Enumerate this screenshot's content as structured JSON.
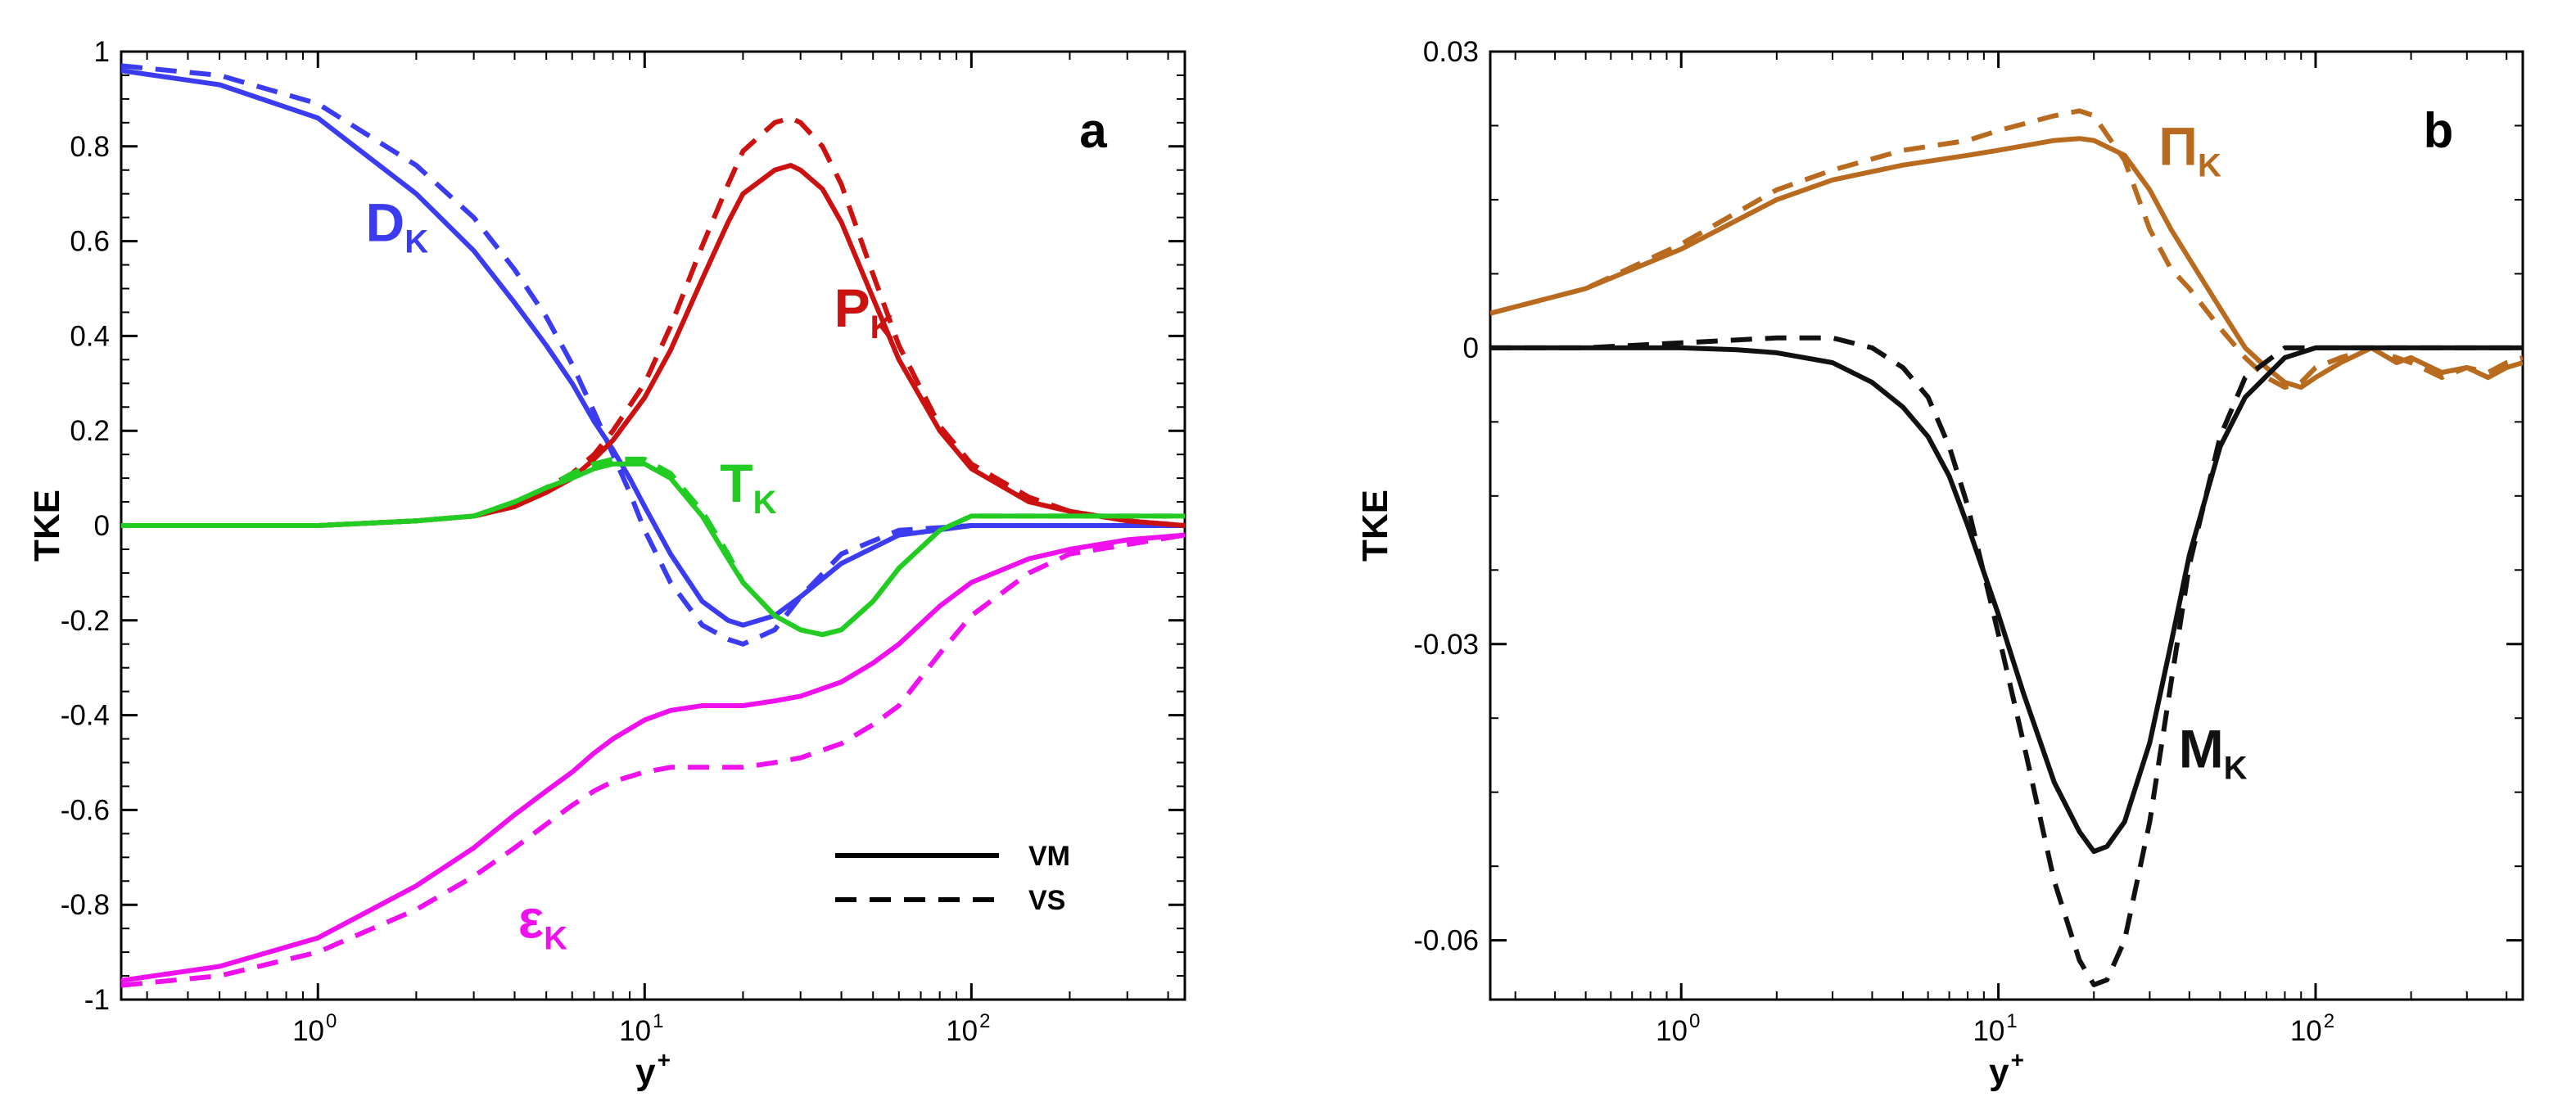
{
  "chart_data": [
    {
      "type": "line",
      "panel_label": "a",
      "xlabel": "y",
      "xlabel_superscript": "+",
      "ylabel": "TKE",
      "xscale": "log",
      "xlim": [
        0.25,
        450
      ],
      "ylim": [
        -1,
        1
      ],
      "yticks": [
        {
          "value": 1,
          "label": "1"
        },
        {
          "value": 0.8,
          "label": "0.8"
        },
        {
          "value": 0.6,
          "label": "0.6"
        },
        {
          "value": 0.4,
          "label": "0.4"
        },
        {
          "value": 0.2,
          "label": "0.2"
        },
        {
          "value": 0,
          "label": "0"
        },
        {
          "value": -0.2,
          "label": "-0.2"
        },
        {
          "value": -0.4,
          "label": "-0.4"
        },
        {
          "value": -0.6,
          "label": "-0.6"
        },
        {
          "value": -0.8,
          "label": "-0.8"
        },
        {
          "value": -1,
          "label": "-1"
        }
      ],
      "xticks": [
        {
          "value": 1,
          "base": "10",
          "exp": "0"
        },
        {
          "value": 10,
          "base": "10",
          "exp": "1"
        },
        {
          "value": 100,
          "base": "10",
          "exp": "2"
        }
      ],
      "legend": {
        "placement": "bottom-right",
        "entries": [
          {
            "label": "VM",
            "style": "solid"
          },
          {
            "label": "VS",
            "style": "dashed"
          }
        ]
      },
      "series": [
        {
          "name": "D",
          "subscript": "K",
          "color": "#3b3bf0",
          "style": "solid",
          "x": [
            0.25,
            0.5,
            1,
            2,
            3,
            4,
            5,
            6,
            7,
            8,
            9,
            10,
            12,
            15,
            18,
            20,
            25,
            30,
            40,
            60,
            100,
            200,
            450
          ],
          "y": [
            0.96,
            0.93,
            0.86,
            0.7,
            0.58,
            0.47,
            0.38,
            0.3,
            0.22,
            0.16,
            0.1,
            0.04,
            -0.06,
            -0.16,
            -0.2,
            -0.21,
            -0.19,
            -0.15,
            -0.08,
            -0.02,
            0.0,
            0.0,
            0.0
          ]
        },
        {
          "name": "D",
          "subscript": "K",
          "color": "#3b3bf0",
          "style": "dashed",
          "x": [
            0.25,
            0.5,
            1,
            2,
            3,
            4,
            5,
            6,
            7,
            8,
            9,
            10,
            12,
            15,
            18,
            20,
            25,
            30,
            40,
            60,
            100,
            200,
            450
          ],
          "y": [
            0.97,
            0.95,
            0.89,
            0.76,
            0.65,
            0.54,
            0.44,
            0.34,
            0.24,
            0.15,
            0.07,
            -0.01,
            -0.12,
            -0.21,
            -0.24,
            -0.25,
            -0.22,
            -0.15,
            -0.06,
            -0.01,
            0.0,
            0.0,
            0.0
          ]
        },
        {
          "name": "P",
          "subscript": "K",
          "color": "#cc1111",
          "style": "solid",
          "x": [
            0.25,
            1,
            2,
            3,
            4,
            5,
            6,
            7,
            8,
            10,
            12,
            15,
            18,
            20,
            25,
            28,
            30,
            35,
            40,
            50,
            60,
            80,
            100,
            150,
            200,
            300,
            450
          ],
          "y": [
            0.0,
            0.0,
            0.01,
            0.02,
            0.04,
            0.07,
            0.1,
            0.14,
            0.18,
            0.27,
            0.37,
            0.52,
            0.64,
            0.7,
            0.75,
            0.76,
            0.75,
            0.71,
            0.64,
            0.48,
            0.35,
            0.2,
            0.12,
            0.05,
            0.03,
            0.01,
            0.0
          ]
        },
        {
          "name": "P",
          "subscript": "K",
          "color": "#cc1111",
          "style": "dashed",
          "x": [
            0.25,
            1,
            2,
            3,
            4,
            5,
            6,
            7,
            8,
            10,
            12,
            15,
            18,
            20,
            25,
            28,
            30,
            35,
            40,
            50,
            60,
            80,
            100,
            150,
            200,
            300,
            450
          ],
          "y": [
            0.0,
            0.0,
            0.01,
            0.02,
            0.04,
            0.08,
            0.11,
            0.15,
            0.2,
            0.3,
            0.42,
            0.59,
            0.72,
            0.79,
            0.85,
            0.86,
            0.85,
            0.8,
            0.72,
            0.53,
            0.38,
            0.21,
            0.13,
            0.06,
            0.03,
            0.01,
            0.0
          ]
        },
        {
          "name": "T",
          "subscript": "K",
          "color": "#22cc22",
          "style": "solid",
          "x": [
            0.25,
            1,
            2,
            3,
            4,
            5,
            6,
            7,
            8,
            9,
            10,
            12,
            15,
            18,
            20,
            25,
            30,
            35,
            40,
            50,
            60,
            80,
            100,
            150,
            200,
            300,
            450
          ],
          "y": [
            0.0,
            0.0,
            0.01,
            0.02,
            0.05,
            0.08,
            0.1,
            0.12,
            0.13,
            0.13,
            0.13,
            0.1,
            0.02,
            -0.07,
            -0.12,
            -0.19,
            -0.22,
            -0.23,
            -0.22,
            -0.16,
            -0.09,
            -0.01,
            0.02,
            0.02,
            0.02,
            0.02,
            0.02
          ]
        },
        {
          "name": "T",
          "subscript": "K",
          "color": "#22cc22",
          "style": "dashed",
          "x": [
            0.25,
            1,
            2,
            3,
            4,
            5,
            6,
            7,
            8,
            9,
            10,
            12,
            15,
            18,
            20,
            25,
            30,
            35,
            40,
            50,
            60,
            80,
            100,
            150,
            200,
            300,
            450
          ],
          "y": [
            0.0,
            0.0,
            0.01,
            0.02,
            0.05,
            0.08,
            0.11,
            0.13,
            0.14,
            0.14,
            0.14,
            0.11,
            0.03,
            -0.06,
            -0.12,
            -0.19,
            -0.22,
            -0.23,
            -0.22,
            -0.16,
            -0.09,
            -0.01,
            0.02,
            0.02,
            0.02,
            0.02,
            0.02
          ]
        },
        {
          "name": "ε",
          "subscript": "K",
          "color": "#ee11ee",
          "style": "solid",
          "x": [
            0.25,
            0.5,
            1,
            2,
            3,
            4,
            5,
            6,
            7,
            8,
            10,
            12,
            15,
            20,
            25,
            30,
            40,
            50,
            60,
            80,
            100,
            150,
            200,
            300,
            450
          ],
          "y": [
            -0.96,
            -0.93,
            -0.87,
            -0.76,
            -0.68,
            -0.61,
            -0.56,
            -0.52,
            -0.48,
            -0.45,
            -0.41,
            -0.39,
            -0.38,
            -0.38,
            -0.37,
            -0.36,
            -0.33,
            -0.29,
            -0.25,
            -0.17,
            -0.12,
            -0.07,
            -0.05,
            -0.03,
            -0.02
          ]
        },
        {
          "name": "ε",
          "subscript": "K",
          "color": "#ee11ee",
          "style": "dashed",
          "x": [
            0.25,
            0.5,
            1,
            2,
            3,
            4,
            5,
            6,
            7,
            8,
            10,
            12,
            15,
            20,
            25,
            30,
            40,
            50,
            60,
            80,
            100,
            150,
            200,
            300,
            450
          ],
          "y": [
            -0.97,
            -0.95,
            -0.9,
            -0.81,
            -0.74,
            -0.68,
            -0.63,
            -0.59,
            -0.56,
            -0.54,
            -0.52,
            -0.51,
            -0.51,
            -0.51,
            -0.5,
            -0.49,
            -0.46,
            -0.42,
            -0.38,
            -0.27,
            -0.19,
            -0.1,
            -0.06,
            -0.04,
            -0.02
          ]
        }
      ],
      "annotations": [
        {
          "series": "D",
          "text": "D",
          "sub": "K",
          "color": "#3b3bf0",
          "x": 1.4,
          "y": 0.6
        },
        {
          "series": "P",
          "text": "P",
          "sub": "K",
          "color": "#cc1111",
          "x": 38,
          "y": 0.42
        },
        {
          "series": "T",
          "text": "T",
          "sub": "K",
          "color": "#22cc22",
          "x": 17,
          "y": 0.05
        },
        {
          "series": "ε",
          "text": "ε",
          "sub": "K",
          "color": "#ee11ee",
          "x": 4.1,
          "y": -0.87
        }
      ]
    },
    {
      "type": "line",
      "panel_label": "b",
      "xlabel": "y",
      "xlabel_superscript": "+",
      "ylabel": "TKE",
      "xscale": "log",
      "xlim": [
        0.25,
        450
      ],
      "ylim": [
        -0.066,
        0.03
      ],
      "yticks": [
        {
          "value": 0.03,
          "label": "0.03"
        },
        {
          "value": 0,
          "label": "0"
        },
        {
          "value": -0.03,
          "label": "-0.03"
        },
        {
          "value": -0.06,
          "label": "-0.06"
        }
      ],
      "xticks": [
        {
          "value": 1,
          "base": "10",
          "exp": "0"
        },
        {
          "value": 10,
          "base": "10",
          "exp": "1"
        },
        {
          "value": 100,
          "base": "10",
          "exp": "2"
        }
      ],
      "series": [
        {
          "name": "Π",
          "subscript": "K",
          "color": "#b86b1f",
          "style": "solid",
          "x": [
            0.25,
            0.5,
            1,
            2,
            3,
            5,
            8,
            10,
            15,
            18,
            20,
            25,
            30,
            35,
            40,
            50,
            60,
            70,
            80,
            90,
            100,
            120,
            150,
            180,
            200,
            250,
            300,
            350,
            400,
            450
          ],
          "y": [
            0.0035,
            0.006,
            0.01,
            0.015,
            0.017,
            0.0185,
            0.0195,
            0.02,
            0.021,
            0.0212,
            0.021,
            0.0195,
            0.016,
            0.012,
            0.009,
            0.004,
            0.0,
            -0.002,
            -0.0035,
            -0.004,
            -0.003,
            -0.0015,
            0.0,
            -0.0015,
            -0.001,
            -0.0025,
            -0.002,
            -0.003,
            -0.002,
            -0.0015
          ]
        },
        {
          "name": "Π",
          "subscript": "K",
          "color": "#b86b1f",
          "style": "dashed",
          "x": [
            0.25,
            0.5,
            1,
            2,
            3,
            5,
            8,
            10,
            15,
            18,
            20,
            25,
            30,
            35,
            40,
            50,
            60,
            70,
            80,
            90,
            100,
            120,
            150,
            180,
            200,
            250,
            300,
            350,
            400,
            450
          ],
          "y": [
            0.0035,
            0.006,
            0.0105,
            0.016,
            0.018,
            0.02,
            0.021,
            0.022,
            0.0235,
            0.024,
            0.0235,
            0.019,
            0.012,
            0.008,
            0.006,
            0.002,
            -0.001,
            -0.003,
            -0.004,
            -0.0035,
            -0.002,
            -0.001,
            0.0,
            -0.001,
            -0.0015,
            -0.003,
            -0.002,
            -0.0025,
            -0.0015,
            -0.001
          ]
        },
        {
          "name": "M",
          "subscript": "K",
          "color": "#111111",
          "style": "solid",
          "x": [
            0.25,
            0.5,
            1,
            1.5,
            2,
            3,
            4,
            5,
            6,
            7,
            8,
            10,
            12,
            15,
            18,
            20,
            22,
            25,
            30,
            35,
            40,
            50,
            60,
            80,
            100,
            150,
            200,
            300,
            450
          ],
          "y": [
            0.0,
            0.0,
            0.0,
            -0.0002,
            -0.0005,
            -0.0015,
            -0.0035,
            -0.006,
            -0.009,
            -0.013,
            -0.018,
            -0.027,
            -0.035,
            -0.044,
            -0.049,
            -0.051,
            -0.0505,
            -0.048,
            -0.04,
            -0.03,
            -0.021,
            -0.01,
            -0.005,
            -0.001,
            0.0,
            0.0,
            0.0,
            0.0,
            0.0
          ]
        },
        {
          "name": "M",
          "subscript": "K",
          "color": "#111111",
          "style": "dashed",
          "x": [
            0.25,
            0.5,
            1,
            1.5,
            2,
            3,
            4,
            5,
            6,
            7,
            8,
            10,
            12,
            15,
            18,
            20,
            22,
            25,
            30,
            35,
            40,
            50,
            60,
            80,
            100,
            150,
            200,
            300,
            450
          ],
          "y": [
            0.0,
            0.0,
            0.0005,
            0.0008,
            0.001,
            0.001,
            0.0,
            -0.002,
            -0.005,
            -0.01,
            -0.016,
            -0.029,
            -0.04,
            -0.054,
            -0.062,
            -0.0645,
            -0.064,
            -0.06,
            -0.048,
            -0.034,
            -0.022,
            -0.009,
            -0.003,
            0.0,
            0.0,
            0.0,
            0.0,
            0.0,
            0.0
          ]
        }
      ],
      "annotations": [
        {
          "series": "Π",
          "text": "Π",
          "sub": "K",
          "color": "#b86b1f",
          "x": 32,
          "y": 0.0185
        },
        {
          "series": "M",
          "text": "M",
          "sub": "K",
          "color": "#111111",
          "x": 37,
          "y": -0.0425
        }
      ]
    }
  ]
}
